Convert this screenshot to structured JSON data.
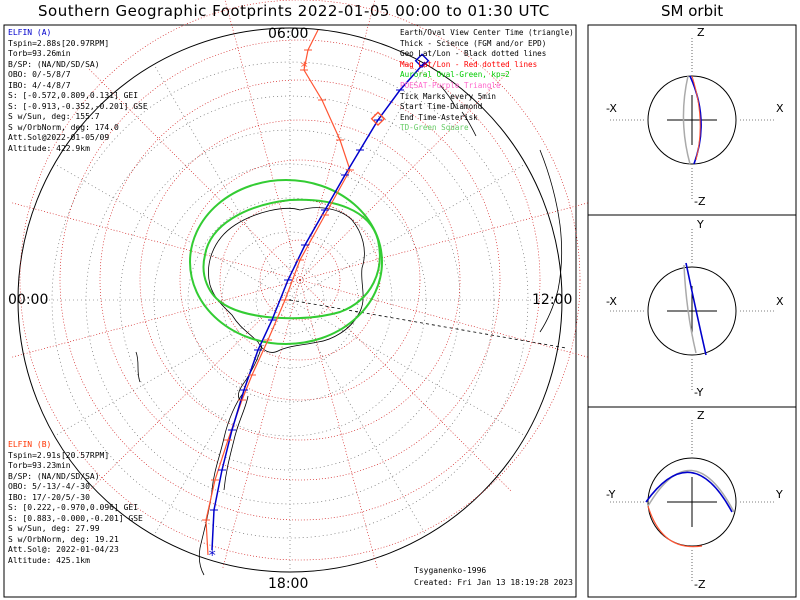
{
  "title": "Southern Geographic Footprints 2022-01-05 00:00 to 01:30 UTC",
  "orbit_title": "SM orbit",
  "hours": {
    "top": "06:00",
    "left": "00:00",
    "right": "12:00",
    "bottom": "18:00"
  },
  "elfin_a": {
    "lines": [
      "ELFIN (A)",
      "Tspin=2.88s[20.97RPM]",
      "Torb=93.26min",
      "B/SP: (NA/ND/SD/SA)",
      "OBO: 0/-5/8/7",
      "IBO: 4/-4/8/7",
      "S: [-0.572,0.809,0.131] GEI",
      "S: [-0.913,-0.352,-0.201] GSE",
      "S w/Sun, deg: 155.7",
      "S w/OrbNorm, deg: 174.0",
      "Att.Sol@2022-01-05/09",
      "Altitude: 422.9km"
    ]
  },
  "elfin_b": {
    "lines": [
      "ELFIN (B)",
      "Tspin=2.91s[20.57RPM]",
      "Torb=93.23min",
      "B/SP: (NA/ND/SD/SA)",
      "OBO: 5/-13/-4/-30",
      "IBO: 17/-20/5/-30",
      "S: [0.222,-0.970,0.096] GEI",
      "S: [0.883,-0.000,-0.201] GSE",
      "S w/Sun, deg: 27.99",
      "S w/OrbNorm, deg: 19.21",
      "Att.Sol@: 2022-01-04/23",
      "Altitude: 425.1km"
    ]
  },
  "legend": [
    {
      "text": "Earth/Oval View Center Time (triangle)",
      "color": "#000000"
    },
    {
      "text": "Thick - Science (FGM and/or EPD)",
      "color": "#000000"
    },
    {
      "text": "Geo Lat/Lon - Black dotted lines",
      "color": "#000000"
    },
    {
      "text": "Mag Lat/Lon - Red dotted lines",
      "color": "#ff0000"
    },
    {
      "text": "Auroral Oval-Green, kp=2",
      "color": "#00cc00"
    },
    {
      "text": "POESAT-Purple Triangle",
      "color": "#ff66cc"
    },
    {
      "text": "Tick Marks every 5min",
      "color": "#000000"
    },
    {
      "text": "Start Time-Diamond",
      "color": "#000000"
    },
    {
      "text": "End Time-Asterisk",
      "color": "#000000"
    },
    {
      "text": "TD-Green Square",
      "color": "#66cc66"
    }
  ],
  "credits": {
    "model": "Tsyganenko-1996",
    "created": "Created: Fri Jan 13 18:19:28 2023"
  },
  "orbit_panels": [
    {
      "top": "Z",
      "bottom": "-Z",
      "left": "-X",
      "right": "X"
    },
    {
      "top": "Y",
      "bottom": "-Y",
      "left": "-X",
      "right": "X"
    },
    {
      "top": "Z",
      "bottom": "-Z",
      "left": "-Y",
      "right": "Y"
    }
  ],
  "colors": {
    "elfin_a": "#0000cc",
    "elfin_b": "#ff5533",
    "oval": "#33cc33",
    "grid_mag": "#cc0000",
    "orbit_earth": "#aaaaaa"
  }
}
